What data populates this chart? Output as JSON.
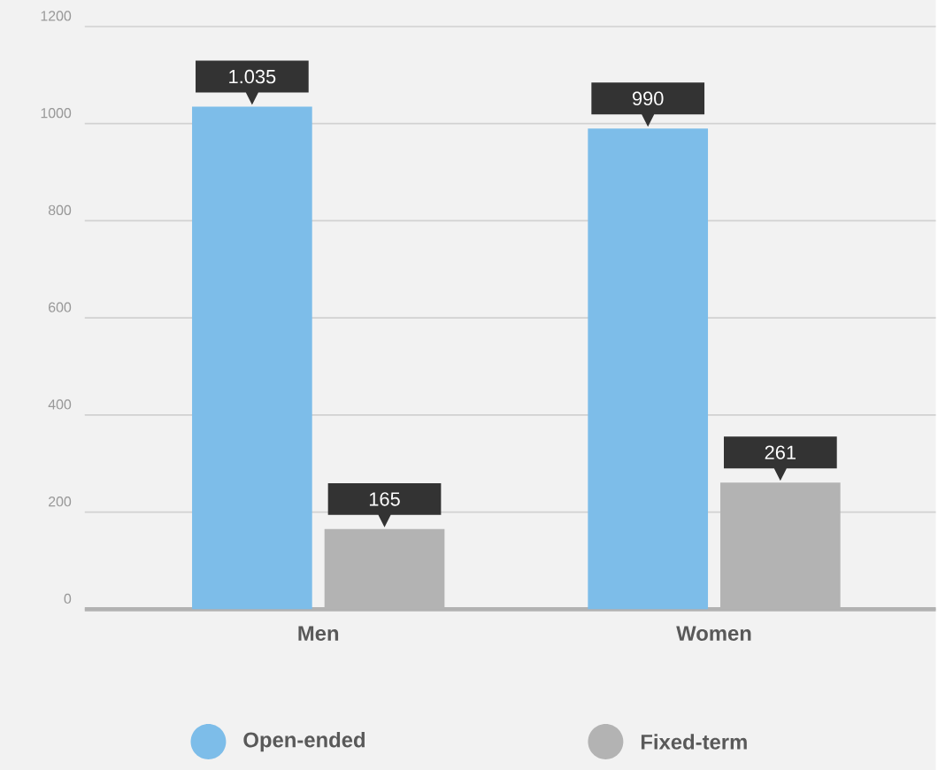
{
  "chart_data": {
    "type": "bar",
    "categories": [
      "Men",
      "Women"
    ],
    "series": [
      {
        "name": "Open-ended",
        "color": "#7dbde9",
        "values": [
          1035,
          990
        ],
        "value_labels": [
          "1.035",
          "990"
        ]
      },
      {
        "name": "Fixed-term",
        "color": "#b3b3b3",
        "values": [
          165,
          261
        ],
        "value_labels": [
          "165",
          "261"
        ]
      }
    ],
    "ylim": [
      0,
      1200
    ],
    "yticks": [
      0,
      200,
      400,
      600,
      800,
      1000,
      1200
    ],
    "grid": "y",
    "legend": "bottom"
  }
}
